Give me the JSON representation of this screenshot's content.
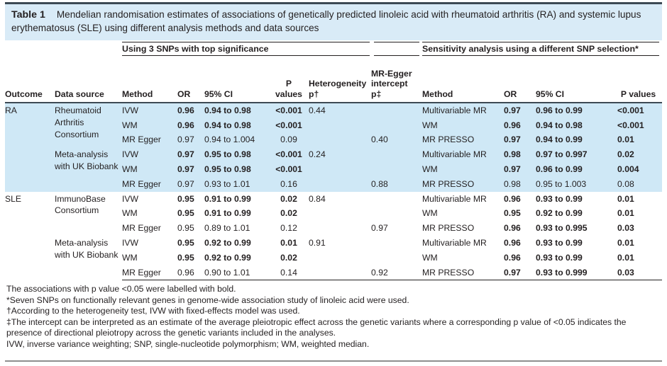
{
  "title": {
    "label": "Table 1",
    "text": "Mendelian randomisation estimates of associations of genetically predicted linoleic acid with rheumatoid arthritis (RA) and systemic lupus erythematosus (SLE) using different analysis methods and data sources"
  },
  "table": {
    "group1": "Using 3 SNPs with top significance",
    "group2": "Sensitivity analysis using a different SNP selection*",
    "columns": [
      "Outcome",
      "Data source",
      "Method",
      "OR",
      "95% CI",
      "P values",
      "Heterogeneity\np†",
      "MR-Egger\nintercept\np‡",
      "Method",
      "OR",
      "95% CI",
      "P values"
    ],
    "rows": [
      {
        "hl": true,
        "outcome": {
          "t": "RA",
          "span": 6
        },
        "source": {
          "t": "Rheumatoid Arthritis Consortium",
          "span": 3
        },
        "cells": [
          [
            "IVW",
            0
          ],
          [
            "0.96",
            1
          ],
          [
            "0.94 to 0.98",
            1
          ],
          [
            "<0.001",
            1
          ],
          [
            "0.44",
            0
          ],
          [
            "",
            0
          ],
          [
            "Multivariable MR",
            0
          ],
          [
            "0.97",
            1
          ],
          [
            "0.96 to 0.99",
            1
          ],
          [
            "<0.001",
            1
          ]
        ]
      },
      {
        "hl": true,
        "cells": [
          [
            "WM",
            0
          ],
          [
            "0.96",
            1
          ],
          [
            "0.94 to 0.98",
            1
          ],
          [
            "<0.001",
            1
          ],
          [
            "",
            0
          ],
          [
            "",
            0
          ],
          [
            "WM",
            0
          ],
          [
            "0.96",
            1
          ],
          [
            "0.94 to 0.98",
            1
          ],
          [
            "<0.001",
            1
          ]
        ]
      },
      {
        "hl": true,
        "cells": [
          [
            "MR Egger",
            0
          ],
          [
            "0.97",
            0
          ],
          [
            "0.94 to 1.004",
            0
          ],
          [
            "0.09",
            0
          ],
          [
            "",
            0
          ],
          [
            "0.40",
            0
          ],
          [
            "MR PRESSO",
            0
          ],
          [
            "0.97",
            1
          ],
          [
            "0.94 to 0.99",
            1
          ],
          [
            "0.01",
            1
          ]
        ]
      },
      {
        "hl": true,
        "source": {
          "t": "Meta-analysis with UK Biobank",
          "span": 3
        },
        "cells": [
          [
            "IVW",
            0
          ],
          [
            "0.97",
            1
          ],
          [
            "0.95 to 0.98",
            1
          ],
          [
            "<0.001",
            1
          ],
          [
            "0.24",
            0
          ],
          [
            "",
            0
          ],
          [
            "Multivariable MR",
            0
          ],
          [
            "0.98",
            1
          ],
          [
            "0.97 to 0.997",
            1
          ],
          [
            "0.02",
            1
          ]
        ]
      },
      {
        "hl": true,
        "cells": [
          [
            "WM",
            0
          ],
          [
            "0.97",
            1
          ],
          [
            "0.95 to 0.98",
            1
          ],
          [
            "<0.001",
            1
          ],
          [
            "",
            0
          ],
          [
            "",
            0
          ],
          [
            "WM",
            0
          ],
          [
            "0.97",
            1
          ],
          [
            "0.96 to 0.99",
            1
          ],
          [
            "0.004",
            1
          ]
        ]
      },
      {
        "hl": true,
        "cells": [
          [
            "MR Egger",
            0
          ],
          [
            "0.97",
            0
          ],
          [
            "0.93 to 1.01",
            0
          ],
          [
            "0.16",
            0
          ],
          [
            "",
            0
          ],
          [
            "0.88",
            0
          ],
          [
            "MR PRESSO",
            0
          ],
          [
            "0.98",
            0
          ],
          [
            "0.95 to 1.003",
            0
          ],
          [
            "0.08",
            0
          ]
        ]
      },
      {
        "hl": false,
        "outcome": {
          "t": "SLE",
          "span": 6
        },
        "source": {
          "t": "ImmunoBase Consortium",
          "span": 3
        },
        "cells": [
          [
            "IVW",
            0
          ],
          [
            "0.95",
            1
          ],
          [
            "0.91 to 0.99",
            1
          ],
          [
            "0.02",
            1
          ],
          [
            "0.84",
            0
          ],
          [
            "",
            0
          ],
          [
            "Multivariable MR",
            0
          ],
          [
            "0.96",
            1
          ],
          [
            "0.93 to 0.99",
            1
          ],
          [
            "0.01",
            1
          ]
        ]
      },
      {
        "hl": false,
        "cells": [
          [
            "WM",
            0
          ],
          [
            "0.95",
            1
          ],
          [
            "0.91 to 0.99",
            1
          ],
          [
            "0.02",
            1
          ],
          [
            "",
            0
          ],
          [
            "",
            0
          ],
          [
            "WM",
            0
          ],
          [
            "0.95",
            1
          ],
          [
            "0.92 to 0.99",
            1
          ],
          [
            "0.01",
            1
          ]
        ]
      },
      {
        "hl": false,
        "cells": [
          [
            "MR Egger",
            0
          ],
          [
            "0.95",
            0
          ],
          [
            "0.89 to 1.01",
            0
          ],
          [
            "0.12",
            0
          ],
          [
            "",
            0
          ],
          [
            "0.97",
            0
          ],
          [
            "MR PRESSO",
            0
          ],
          [
            "0.96",
            1
          ],
          [
            "0.93 to 0.995",
            1
          ],
          [
            "0.03",
            1
          ]
        ]
      },
      {
        "hl": false,
        "source": {
          "t": "Meta-analysis with UK Biobank",
          "span": 3
        },
        "cells": [
          [
            "IVW",
            0
          ],
          [
            "0.95",
            1
          ],
          [
            "0.92 to 0.99",
            1
          ],
          [
            "0.01",
            1
          ],
          [
            "0.91",
            0
          ],
          [
            "",
            0
          ],
          [
            "Multivariable MR",
            0
          ],
          [
            "0.96",
            1
          ],
          [
            "0.93 to 0.99",
            1
          ],
          [
            "0.01",
            1
          ]
        ]
      },
      {
        "hl": false,
        "cells": [
          [
            "WM",
            0
          ],
          [
            "0.95",
            1
          ],
          [
            "0.92 to 0.99",
            1
          ],
          [
            "0.02",
            1
          ],
          [
            "",
            0
          ],
          [
            "",
            0
          ],
          [
            "WM",
            0
          ],
          [
            "0.96",
            1
          ],
          [
            "0.93 to 0.99",
            1
          ],
          [
            "0.01",
            1
          ]
        ]
      },
      {
        "hl": false,
        "cells": [
          [
            "MR Egger",
            0
          ],
          [
            "0.96",
            0
          ],
          [
            "0.90 to 1.01",
            0
          ],
          [
            "0.14",
            0
          ],
          [
            "",
            0
          ],
          [
            "0.92",
            0
          ],
          [
            "MR PRESSO",
            0
          ],
          [
            "0.97",
            1
          ],
          [
            "0.93 to 0.999",
            1
          ],
          [
            "0.03",
            1
          ]
        ]
      }
    ]
  },
  "footnotes": [
    "The associations with p value <0.05 were labelled with bold.",
    "*Seven SNPs on functionally relevant genes in genome-wide association study of linoleic acid were used.",
    "†According to the heterogeneity test, IVW with fixed-effects model was used.",
    "‡The intercept can be interpreted as an estimate of the average pleiotropic effect across the genetic variants where a corresponding p value of <0.05 indicates the presence of directional pleiotropy across the genetic variants included in the analyses.",
    "IVW, inverse variance weighting; SNP, single-nucleotide polymorphism; WM, weighted median."
  ],
  "colors": {
    "heavy_rule": "#3d4a54",
    "thin_rule": "#231f20",
    "title_background": "#d9ebf7",
    "row_highlight": "#cfe8f6",
    "bottom_rule": "#8f8f8f",
    "text": "#231f20"
  }
}
